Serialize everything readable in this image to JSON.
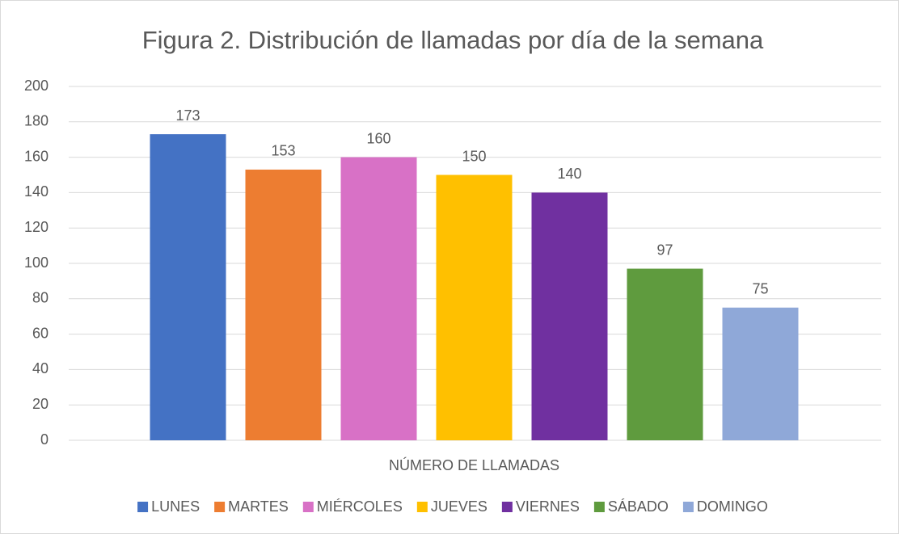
{
  "chart_data": {
    "type": "bar",
    "title": "Figura 2. Distribución de llamadas por día de la semana",
    "categories": [
      "NÚMERO DE LLAMADAS"
    ],
    "series": [
      {
        "name": "LUNES",
        "color": "#4472c4",
        "values": [
          173
        ]
      },
      {
        "name": "MARTES",
        "color": "#ed7d31",
        "values": [
          153
        ]
      },
      {
        "name": "MIÉRCOLES",
        "color": "#d871c6",
        "values": [
          160
        ]
      },
      {
        "name": "JUEVES",
        "color": "#ffc000",
        "values": [
          150
        ]
      },
      {
        "name": "VIERNES",
        "color": "#7030a0",
        "values": [
          140
        ]
      },
      {
        "name": "SÁBADO",
        "color": "#5f9b3e",
        "values": [
          97
        ]
      },
      {
        "name": "DOMINGO",
        "color": "#8fa8d8",
        "values": [
          75
        ]
      }
    ],
    "ylim": [
      0,
      200
    ],
    "yticks": [
      0,
      20,
      40,
      60,
      80,
      100,
      120,
      140,
      160,
      180,
      200
    ],
    "grid": true,
    "legend": "bottom",
    "data_labels": true
  }
}
